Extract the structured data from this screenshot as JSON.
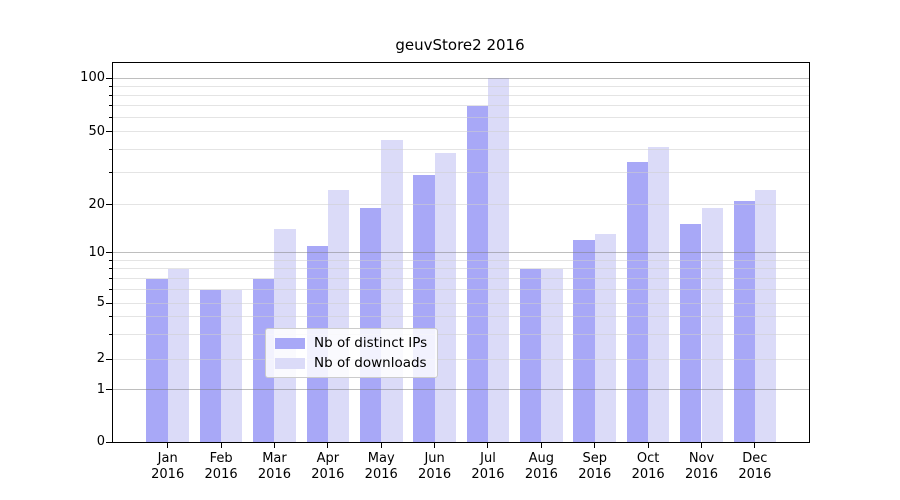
{
  "chart_data": {
    "type": "bar",
    "title": "geuvStore2 2016",
    "categories": [
      "Jan",
      "Feb",
      "Mar",
      "Apr",
      "May",
      "Jun",
      "Jul",
      "Aug",
      "Sep",
      "Oct",
      "Nov",
      "Dec"
    ],
    "category_year": "2016",
    "series": [
      {
        "name": "Nb of distinct IPs",
        "color": "#a8a8f7",
        "values": [
          7,
          6,
          7,
          11,
          19,
          29,
          70,
          8,
          12,
          34,
          15,
          21
        ]
      },
      {
        "name": "Nb of downloads",
        "color": "#dbdbf8",
        "values": [
          8,
          6,
          14,
          24,
          45,
          38,
          100,
          8,
          13,
          41,
          19,
          24
        ]
      }
    ],
    "xlabel": "",
    "ylabel": "",
    "yscale": "symlog",
    "yticks": [
      100,
      50,
      20,
      10,
      5,
      2,
      1,
      0
    ],
    "ytick_minor": [
      3,
      4,
      6,
      7,
      8,
      9,
      30,
      40,
      60,
      70,
      80,
      90
    ],
    "ylim": [
      0,
      120
    ],
    "grid": "horizontal major+minor",
    "legend_position": "lower center inside plot",
    "colors": {
      "grid_major": "#b0b0b0",
      "grid_minor": "#e4e4e4",
      "spine": "#000000"
    }
  }
}
